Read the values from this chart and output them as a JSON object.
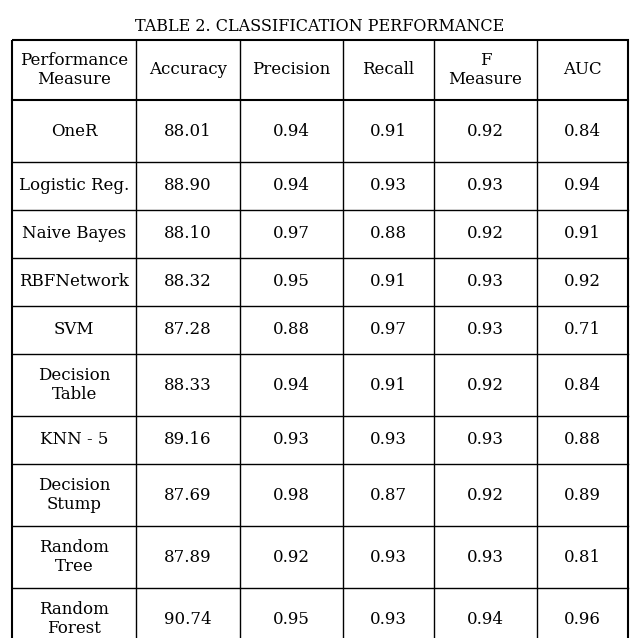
{
  "title": "TABLE 2. CLASSIFICATION PERFORMANCE",
  "columns": [
    "Performance\nMeasure",
    "Accuracy",
    "Precision",
    "Recall",
    "F\nMeasure",
    "AUC"
  ],
  "rows": [
    [
      "OneR",
      "88.01",
      "0.94",
      "0.91",
      "0.92",
      "0.84"
    ],
    [
      "Logistic Reg.",
      "88.90",
      "0.94",
      "0.93",
      "0.93",
      "0.94"
    ],
    [
      "Naive Bayes",
      "88.10",
      "0.97",
      "0.88",
      "0.92",
      "0.91"
    ],
    [
      "RBFNetwork",
      "88.32",
      "0.95",
      "0.91",
      "0.93",
      "0.92"
    ],
    [
      "SVM",
      "87.28",
      "0.88",
      "0.97",
      "0.93",
      "0.71"
    ],
    [
      "Decision\nTable",
      "88.33",
      "0.94",
      "0.91",
      "0.92",
      "0.84"
    ],
    [
      "KNN - 5",
      "89.16",
      "0.93",
      "0.93",
      "0.93",
      "0.88"
    ],
    [
      "Decision\nStump",
      "87.69",
      "0.98",
      "0.87",
      "0.92",
      "0.89"
    ],
    [
      "Random\nTree",
      "87.89",
      "0.92",
      "0.93",
      "0.93",
      "0.81"
    ],
    [
      "Random\nForest",
      "90.74",
      "0.95",
      "0.93",
      "0.94",
      "0.96"
    ]
  ],
  "background_color": "#ffffff",
  "border_color": "#000000",
  "text_color": "#000000",
  "title_fontsize": 11.5,
  "header_fontsize": 12,
  "cell_fontsize": 12,
  "fig_width": 6.4,
  "fig_height": 6.38
}
